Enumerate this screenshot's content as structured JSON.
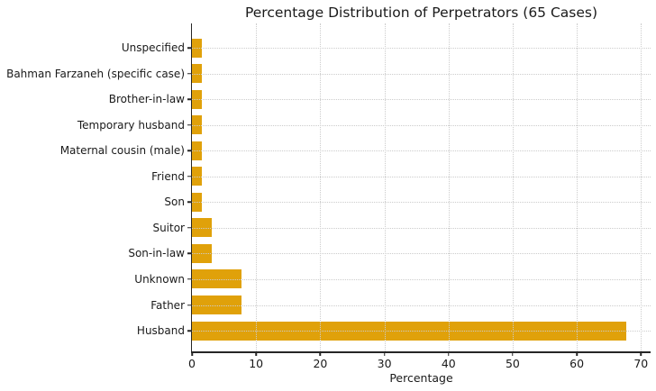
{
  "chart_data": {
    "type": "bar",
    "orientation": "horizontal",
    "title": "Percentage Distribution of Perpetrators (65 Cases)",
    "xlabel": "Percentage",
    "ylabel": "",
    "categories": [
      "Unspecified",
      "Bahman Farzaneh (specific case)",
      "Brother-in-law",
      "Temporary husband",
      "Maternal cousin (male)",
      "Friend",
      "Son",
      "Suitor",
      "Son-in-law",
      "Unknown",
      "Father",
      "Husband"
    ],
    "values": [
      1.5,
      1.5,
      1.5,
      1.5,
      1.5,
      1.5,
      1.5,
      3.1,
      3.1,
      7.7,
      7.7,
      67.7
    ],
    "categories_order": "top-to-bottom",
    "total_cases": 65,
    "xticks": [
      0,
      10,
      20,
      30,
      40,
      50,
      60,
      70
    ],
    "xlim": [
      0,
      71.5
    ],
    "grid": true,
    "grid_style": "dotted",
    "grid_position": "above-bars",
    "legend": "none",
    "bar_color": "#E0A10A",
    "grid_color": "#CCCCCC",
    "axis_color": "#262626",
    "text_color": "#1A1A1A",
    "background_color": "#FFFFFF"
  }
}
